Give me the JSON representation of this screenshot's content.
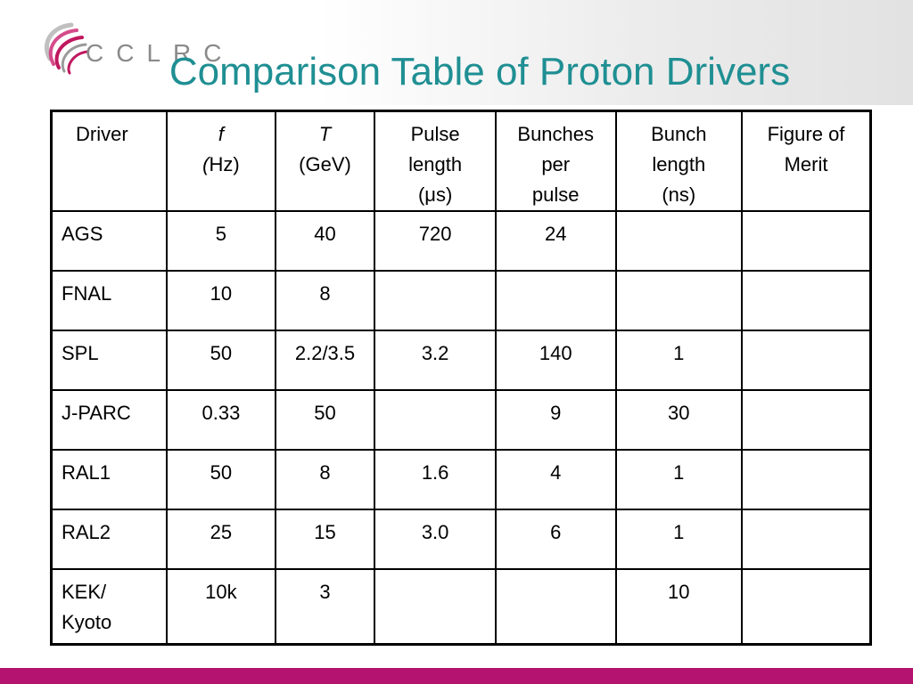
{
  "slide": {
    "title": "Comparison Table of Proton Drivers",
    "logo_text": "CCLRC"
  },
  "colors": {
    "title": "#1f8f93",
    "accent_bar": "#b4136f",
    "logo_grey": "#8a8a8a",
    "logo_swirl": "#c0185f"
  },
  "table": {
    "headers": {
      "driver": "Driver",
      "f_symbol": "f",
      "f_unit": "Hz)",
      "f_paren": "(",
      "t_symbol": "T",
      "t_unit": "(GeV)",
      "pulse_1": "Pulse",
      "pulse_2": "length",
      "pulse_3": "(μs)",
      "bunches_1": "Bunches",
      "bunches_2": "per",
      "bunches_3": "pulse",
      "bunchlen_1": "Bunch",
      "bunchlen_2": "length",
      "bunchlen_3": "(ns)",
      "merit_1": "Figure of",
      "merit_2": "Merit"
    },
    "rows": [
      {
        "driver": "AGS",
        "driver_2": "",
        "f": "5",
        "t": "40",
        "pulse": "720",
        "bunches": "24",
        "bunch_len": "",
        "merit": ""
      },
      {
        "driver": "FNAL",
        "driver_2": "",
        "f": "10",
        "t": "8",
        "pulse": "",
        "bunches": "",
        "bunch_len": "",
        "merit": ""
      },
      {
        "driver": "SPL",
        "driver_2": "",
        "f": "50",
        "t": "2.2/3.5",
        "pulse": "3.2",
        "bunches": "140",
        "bunch_len": "1",
        "merit": ""
      },
      {
        "driver": "J-PARC",
        "driver_2": "",
        "f": "0.33",
        "t": "50",
        "pulse": "",
        "bunches": "9",
        "bunch_len": "30",
        "merit": ""
      },
      {
        "driver": "RAL1",
        "driver_2": "",
        "f": "50",
        "t": "8",
        "pulse": "1.6",
        "bunches": "4",
        "bunch_len": "1",
        "merit": ""
      },
      {
        "driver": "RAL2",
        "driver_2": "",
        "f": "25",
        "t": "15",
        "pulse": "3.0",
        "bunches": "6",
        "bunch_len": "1",
        "merit": ""
      },
      {
        "driver": "KEK/",
        "driver_2": "Kyoto",
        "f": "10k",
        "t": "3",
        "pulse": "",
        "bunches": "",
        "bunch_len": "10",
        "merit": ""
      }
    ]
  }
}
